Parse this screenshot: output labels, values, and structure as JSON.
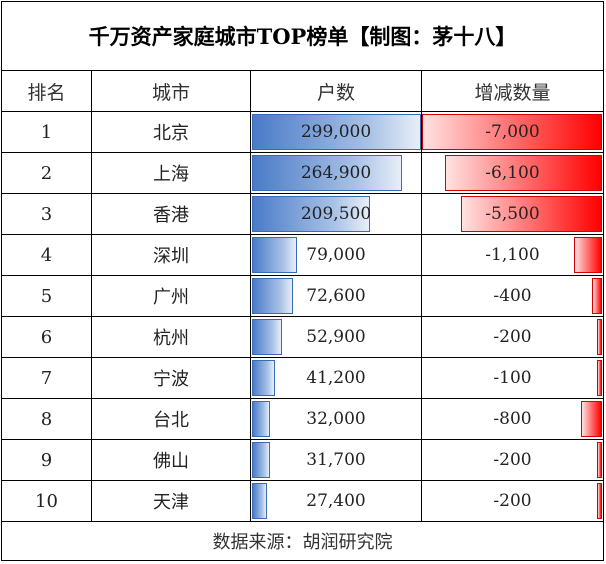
{
  "title": "千万资产家庭城市TOP榜单【制图：茅十八】",
  "headers": {
    "rank": "排名",
    "city": "城市",
    "households": "户数",
    "change": "增减数量"
  },
  "source": "数据来源：胡润研究院",
  "colors": {
    "households_bar": "#4a7bc8",
    "change_bar": "#ff0000"
  },
  "chart_data": {
    "type": "table",
    "columns": [
      "排名",
      "城市",
      "户数",
      "增减数量"
    ],
    "rows": [
      {
        "rank": "1",
        "city": "北京",
        "households": 299000,
        "households_label": "299,000",
        "change": -7000,
        "change_label": "-7,000"
      },
      {
        "rank": "2",
        "city": "上海",
        "households": 264900,
        "households_label": "264,900",
        "change": -6100,
        "change_label": "-6,100"
      },
      {
        "rank": "3",
        "city": "香港",
        "households": 209500,
        "households_label": "209,500",
        "change": -5500,
        "change_label": "-5,500"
      },
      {
        "rank": "4",
        "city": "深圳",
        "households": 79000,
        "households_label": "79,000",
        "change": -1100,
        "change_label": "-1,100"
      },
      {
        "rank": "5",
        "city": "广州",
        "households": 72600,
        "households_label": "72,600",
        "change": -400,
        "change_label": "-400"
      },
      {
        "rank": "6",
        "city": "杭州",
        "households": 52900,
        "households_label": "52,900",
        "change": -200,
        "change_label": "-200"
      },
      {
        "rank": "7",
        "city": "宁波",
        "households": 41200,
        "households_label": "41,200",
        "change": -100,
        "change_label": "-100"
      },
      {
        "rank": "8",
        "city": "台北",
        "households": 32000,
        "households_label": "32,000",
        "change": -800,
        "change_label": "-800"
      },
      {
        "rank": "9",
        "city": "佛山",
        "households": 31700,
        "households_label": "31,700",
        "change": -200,
        "change_label": "-200"
      },
      {
        "rank": "10",
        "city": "天津",
        "households": 27400,
        "households_label": "27,400",
        "change": -200,
        "change_label": "-200"
      }
    ]
  }
}
